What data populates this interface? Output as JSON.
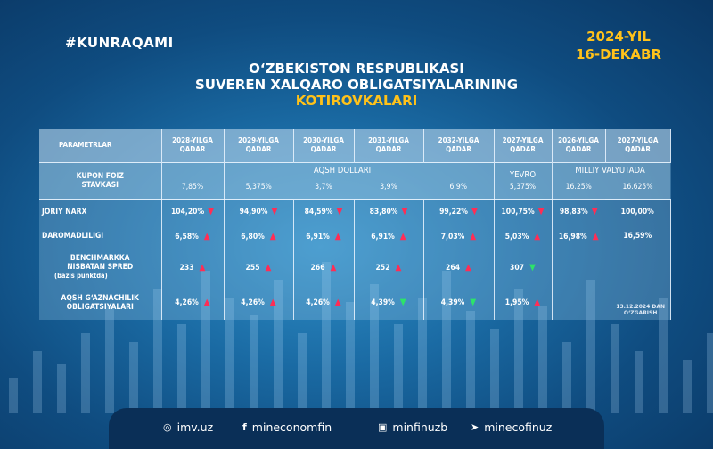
{
  "hashtag": "#KUNRAQAMI",
  "date": {
    "year": "2024-YIL",
    "day": "16-DEKABR"
  },
  "title": {
    "line1": "O‘ZBEKISTON RESPUBLIKASI",
    "line2": "SUVEREN XALQARO OBLIGATSIYALARINING",
    "line3": "KOTIROVKALARI"
  },
  "table": {
    "param_header": "PARAMETRLAR",
    "columns": [
      {
        "l1": "2028-YILGA",
        "l2": "QADAR"
      },
      {
        "l1": "2029-YILGA",
        "l2": "QADAR"
      },
      {
        "l1": "2030-YILGA",
        "l2": "QADAR"
      },
      {
        "l1": "2031-YILGA",
        "l2": "QADAR"
      },
      {
        "l1": "2032-YILGA",
        "l2": "QADAR"
      },
      {
        "l1": "2027-YILGA",
        "l2": "QADAR"
      },
      {
        "l1": "2026-YILGA",
        "l2": "QADAR"
      },
      {
        "l1": "2027-YILGA",
        "l2": "QADAR"
      }
    ],
    "kupon": {
      "l1": "KUPON FOIZ",
      "l2": "STAVKASI",
      "currency_usd": "AQSH DOLLARI",
      "currency_eur": "YEVRO",
      "currency_local": "MILLIY VALYUTADA",
      "values": [
        "7,85%",
        "5,375%",
        "3,7%",
        "3,9%",
        "6,9%",
        "5,375%",
        "16.25%",
        "16.625%"
      ]
    },
    "rows": [
      {
        "l1": "JORIY NARX",
        "l2": "",
        "l3": "",
        "values": [
          "104,20%",
          "94,90%",
          "84,59%",
          "83,80%",
          "99,22%",
          "100,75%",
          "98,83%",
          "100,00%"
        ],
        "arrows": [
          "down",
          "down",
          "down",
          "down",
          "down",
          "down",
          "down",
          ""
        ]
      },
      {
        "l1": "DAROMADLILIGI",
        "l2": "",
        "l3": "",
        "values": [
          "6,58%",
          "6,80%",
          "6,91%",
          "6,91%",
          "7,03%",
          "5,03%",
          "16,98%",
          "16,59%"
        ],
        "arrows": [
          "up",
          "up",
          "up",
          "up",
          "up",
          "up",
          "up",
          ""
        ]
      },
      {
        "l1": "BENCHMARKKA",
        "l2": "NISBATAN SPRED",
        "l3": "(bazis punktda)",
        "values": [
          "233",
          "255",
          "266",
          "252",
          "264",
          "307",
          "",
          ""
        ],
        "arrows": [
          "up",
          "up",
          "up",
          "up",
          "up",
          "green",
          "",
          ""
        ]
      },
      {
        "l1": "AQSH G‘AZNACHILIK",
        "l2": "OBLIGATSIYALARI",
        "l3": "",
        "values": [
          "4,26%",
          "4,26%",
          "4,26%",
          "4,39%",
          "4,39%",
          "1,95%",
          "",
          ""
        ],
        "arrows": [
          "up",
          "up",
          "up",
          "green",
          "green",
          "up",
          "",
          ""
        ]
      }
    ],
    "note": {
      "l1": "13.12.2024 DAN",
      "l2": "O‘ZGARISH"
    }
  },
  "footer": [
    {
      "icon": "globe-icon",
      "text": "imv.uz"
    },
    {
      "icon": "facebook-icon",
      "text": "mineconomfin"
    },
    {
      "icon": "instagram-icon",
      "text": "minfinuzb"
    },
    {
      "icon": "telegram-icon",
      "text": "minecofinuz"
    }
  ],
  "colors": {
    "accent": "#ffc21a",
    "arrow_up": "#ff2d55",
    "arrow_down_green": "#2de36a"
  }
}
